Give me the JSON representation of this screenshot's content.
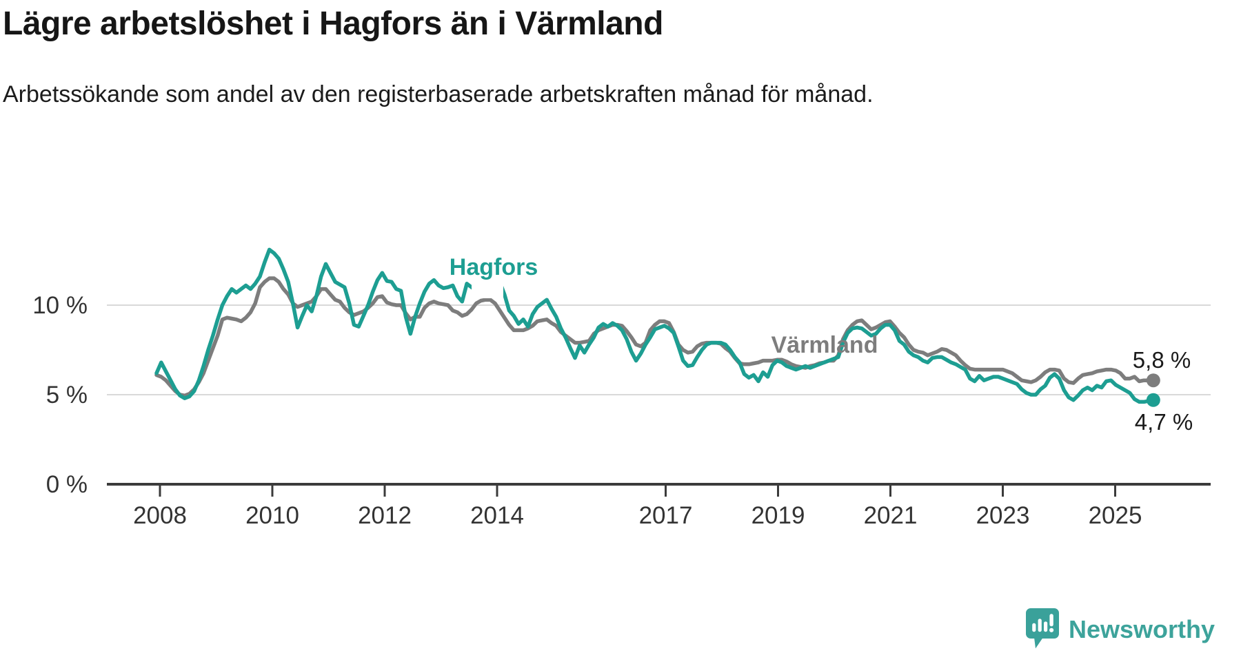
{
  "header": {
    "title": "Lägre arbetslöshet i Hagfors än i Värmland",
    "subtitle": "Arbetssökande som andel av den registerbaserade arbetskraften månad för månad."
  },
  "footer": {
    "brand": "Newsworthy"
  },
  "chart_data": {
    "type": "line",
    "title": "Lägre arbetslöshet i Hagfors än i Värmland",
    "subtitle": "Arbetssökande som andel av den registerbaserade arbetskraften månad för månad.",
    "x_unit": "month",
    "x_start": "2008-01",
    "x_end": "2025-09",
    "ylim": [
      0,
      14
    ],
    "grid": "horizontal",
    "legend_position": "inline-labels",
    "y_ticks": [
      {
        "value": 0,
        "label": "0 %"
      },
      {
        "value": 5,
        "label": "5 %"
      },
      {
        "value": 10,
        "label": "10 %"
      }
    ],
    "x_ticks": [
      2008,
      2010,
      2012,
      2014,
      2017,
      2019,
      2021,
      2023,
      2025
    ],
    "series": [
      {
        "name": "Hagfors",
        "color": "#1d9e92",
        "end_value": 4.7,
        "end_label": "4,7 %",
        "values": [
          6.2,
          6.8,
          6.3,
          5.8,
          5.3,
          4.95,
          4.8,
          4.9,
          5.2,
          5.8,
          6.6,
          7.5,
          8.3,
          9.2,
          10.0,
          10.5,
          10.9,
          10.7,
          10.9,
          11.1,
          10.9,
          11.2,
          11.6,
          12.4,
          13.1,
          12.9,
          12.6,
          12.0,
          11.3,
          10.1,
          8.75,
          9.4,
          10.0,
          9.65,
          10.5,
          11.6,
          12.3,
          11.8,
          11.3,
          11.15,
          11.0,
          10.1,
          8.9,
          8.8,
          9.4,
          10.0,
          10.75,
          11.4,
          11.8,
          11.35,
          11.3,
          10.9,
          10.8,
          9.35,
          8.4,
          9.35,
          10.1,
          10.75,
          11.2,
          11.4,
          11.1,
          10.95,
          11.0,
          11.1,
          10.5,
          10.2,
          11.2,
          11.0,
          10.8,
          11.0,
          11.2,
          11.35,
          11.3,
          11.3,
          10.6,
          9.7,
          9.4,
          8.95,
          9.2,
          8.8,
          9.5,
          9.9,
          10.1,
          10.3,
          9.8,
          9.35,
          8.7,
          8.2,
          7.6,
          7.05,
          7.75,
          7.35,
          7.8,
          8.2,
          8.75,
          8.95,
          8.8,
          9.0,
          8.85,
          8.6,
          8.1,
          7.4,
          6.9,
          7.3,
          7.8,
          8.2,
          8.65,
          8.75,
          8.85,
          8.7,
          8.45,
          7.7,
          6.9,
          6.6,
          6.65,
          7.1,
          7.5,
          7.8,
          7.9,
          7.9,
          7.9,
          7.8,
          7.5,
          7.1,
          6.8,
          6.15,
          5.95,
          6.1,
          5.75,
          6.25,
          6.0,
          6.65,
          6.9,
          6.8,
          6.6,
          6.5,
          6.4,
          6.5,
          6.6,
          6.5,
          6.6,
          6.7,
          6.8,
          6.9,
          7.0,
          7.1,
          7.9,
          8.45,
          8.7,
          8.75,
          8.7,
          8.5,
          8.3,
          8.4,
          8.7,
          8.9,
          8.9,
          8.6,
          8.0,
          7.8,
          7.4,
          7.2,
          7.1,
          6.9,
          6.8,
          7.05,
          7.1,
          7.1,
          6.95,
          6.8,
          6.7,
          6.55,
          6.4,
          5.9,
          5.75,
          6.05,
          5.8,
          5.9,
          6.0,
          6.0,
          5.9,
          5.8,
          5.7,
          5.6,
          5.3,
          5.1,
          5.0,
          5.0,
          5.3,
          5.5,
          5.95,
          6.15,
          5.9,
          5.25,
          4.85,
          4.7,
          4.95,
          5.25,
          5.4,
          5.25,
          5.5,
          5.4,
          5.75,
          5.8,
          5.55,
          5.4,
          5.25,
          5.1,
          4.75,
          4.6,
          4.6,
          4.65,
          4.7
        ]
      },
      {
        "name": "Värmland",
        "color": "#7d7d7d",
        "end_value": 5.8,
        "end_label": "5,8 %",
        "values": [
          6.1,
          6.0,
          5.8,
          5.5,
          5.2,
          5.0,
          4.95,
          5.05,
          5.3,
          5.7,
          6.2,
          6.9,
          7.6,
          8.3,
          9.2,
          9.3,
          9.25,
          9.2,
          9.1,
          9.3,
          9.6,
          10.1,
          11.0,
          11.3,
          11.5,
          11.5,
          11.3,
          10.9,
          10.6,
          10.1,
          9.9,
          10.0,
          10.1,
          10.2,
          10.5,
          10.9,
          10.9,
          10.6,
          10.3,
          10.2,
          9.85,
          9.6,
          9.45,
          9.55,
          9.65,
          9.85,
          10.1,
          10.45,
          10.5,
          10.15,
          10.05,
          10.0,
          10.0,
          9.55,
          9.2,
          9.35,
          9.35,
          9.85,
          10.1,
          10.2,
          10.1,
          10.05,
          10.0,
          9.7,
          9.6,
          9.4,
          9.5,
          9.75,
          10.1,
          10.25,
          10.3,
          10.3,
          10.1,
          9.7,
          9.3,
          8.9,
          8.6,
          8.6,
          8.6,
          8.7,
          8.85,
          9.1,
          9.15,
          9.2,
          9.0,
          8.85,
          8.5,
          8.3,
          8.1,
          7.9,
          7.9,
          7.95,
          8.0,
          8.4,
          8.6,
          8.7,
          8.8,
          8.9,
          8.9,
          8.85,
          8.55,
          8.2,
          7.8,
          7.7,
          7.9,
          8.6,
          8.9,
          9.1,
          9.1,
          9.0,
          8.5,
          7.8,
          7.5,
          7.35,
          7.4,
          7.7,
          7.85,
          7.9,
          7.9,
          7.9,
          7.85,
          7.6,
          7.4,
          7.05,
          6.75,
          6.7,
          6.7,
          6.75,
          6.8,
          6.9,
          6.9,
          6.9,
          6.95,
          6.95,
          6.85,
          6.7,
          6.6,
          6.55,
          6.5,
          6.6,
          6.65,
          6.75,
          6.8,
          6.9,
          6.9,
          7.2,
          8.1,
          8.6,
          8.9,
          9.1,
          9.15,
          8.9,
          8.65,
          8.75,
          8.9,
          9.05,
          9.1,
          8.8,
          8.45,
          8.2,
          7.8,
          7.5,
          7.4,
          7.35,
          7.2,
          7.3,
          7.4,
          7.55,
          7.5,
          7.35,
          7.2,
          6.9,
          6.65,
          6.45,
          6.4,
          6.4,
          6.4,
          6.4,
          6.4,
          6.4,
          6.4,
          6.3,
          6.2,
          6.0,
          5.8,
          5.75,
          5.7,
          5.8,
          6.0,
          6.25,
          6.4,
          6.4,
          6.35,
          5.9,
          5.7,
          5.65,
          5.9,
          6.1,
          6.15,
          6.2,
          6.3,
          6.35,
          6.4,
          6.4,
          6.35,
          6.2,
          5.9,
          5.9,
          6.0,
          5.75,
          5.8,
          5.8,
          5.8
        ]
      }
    ]
  }
}
